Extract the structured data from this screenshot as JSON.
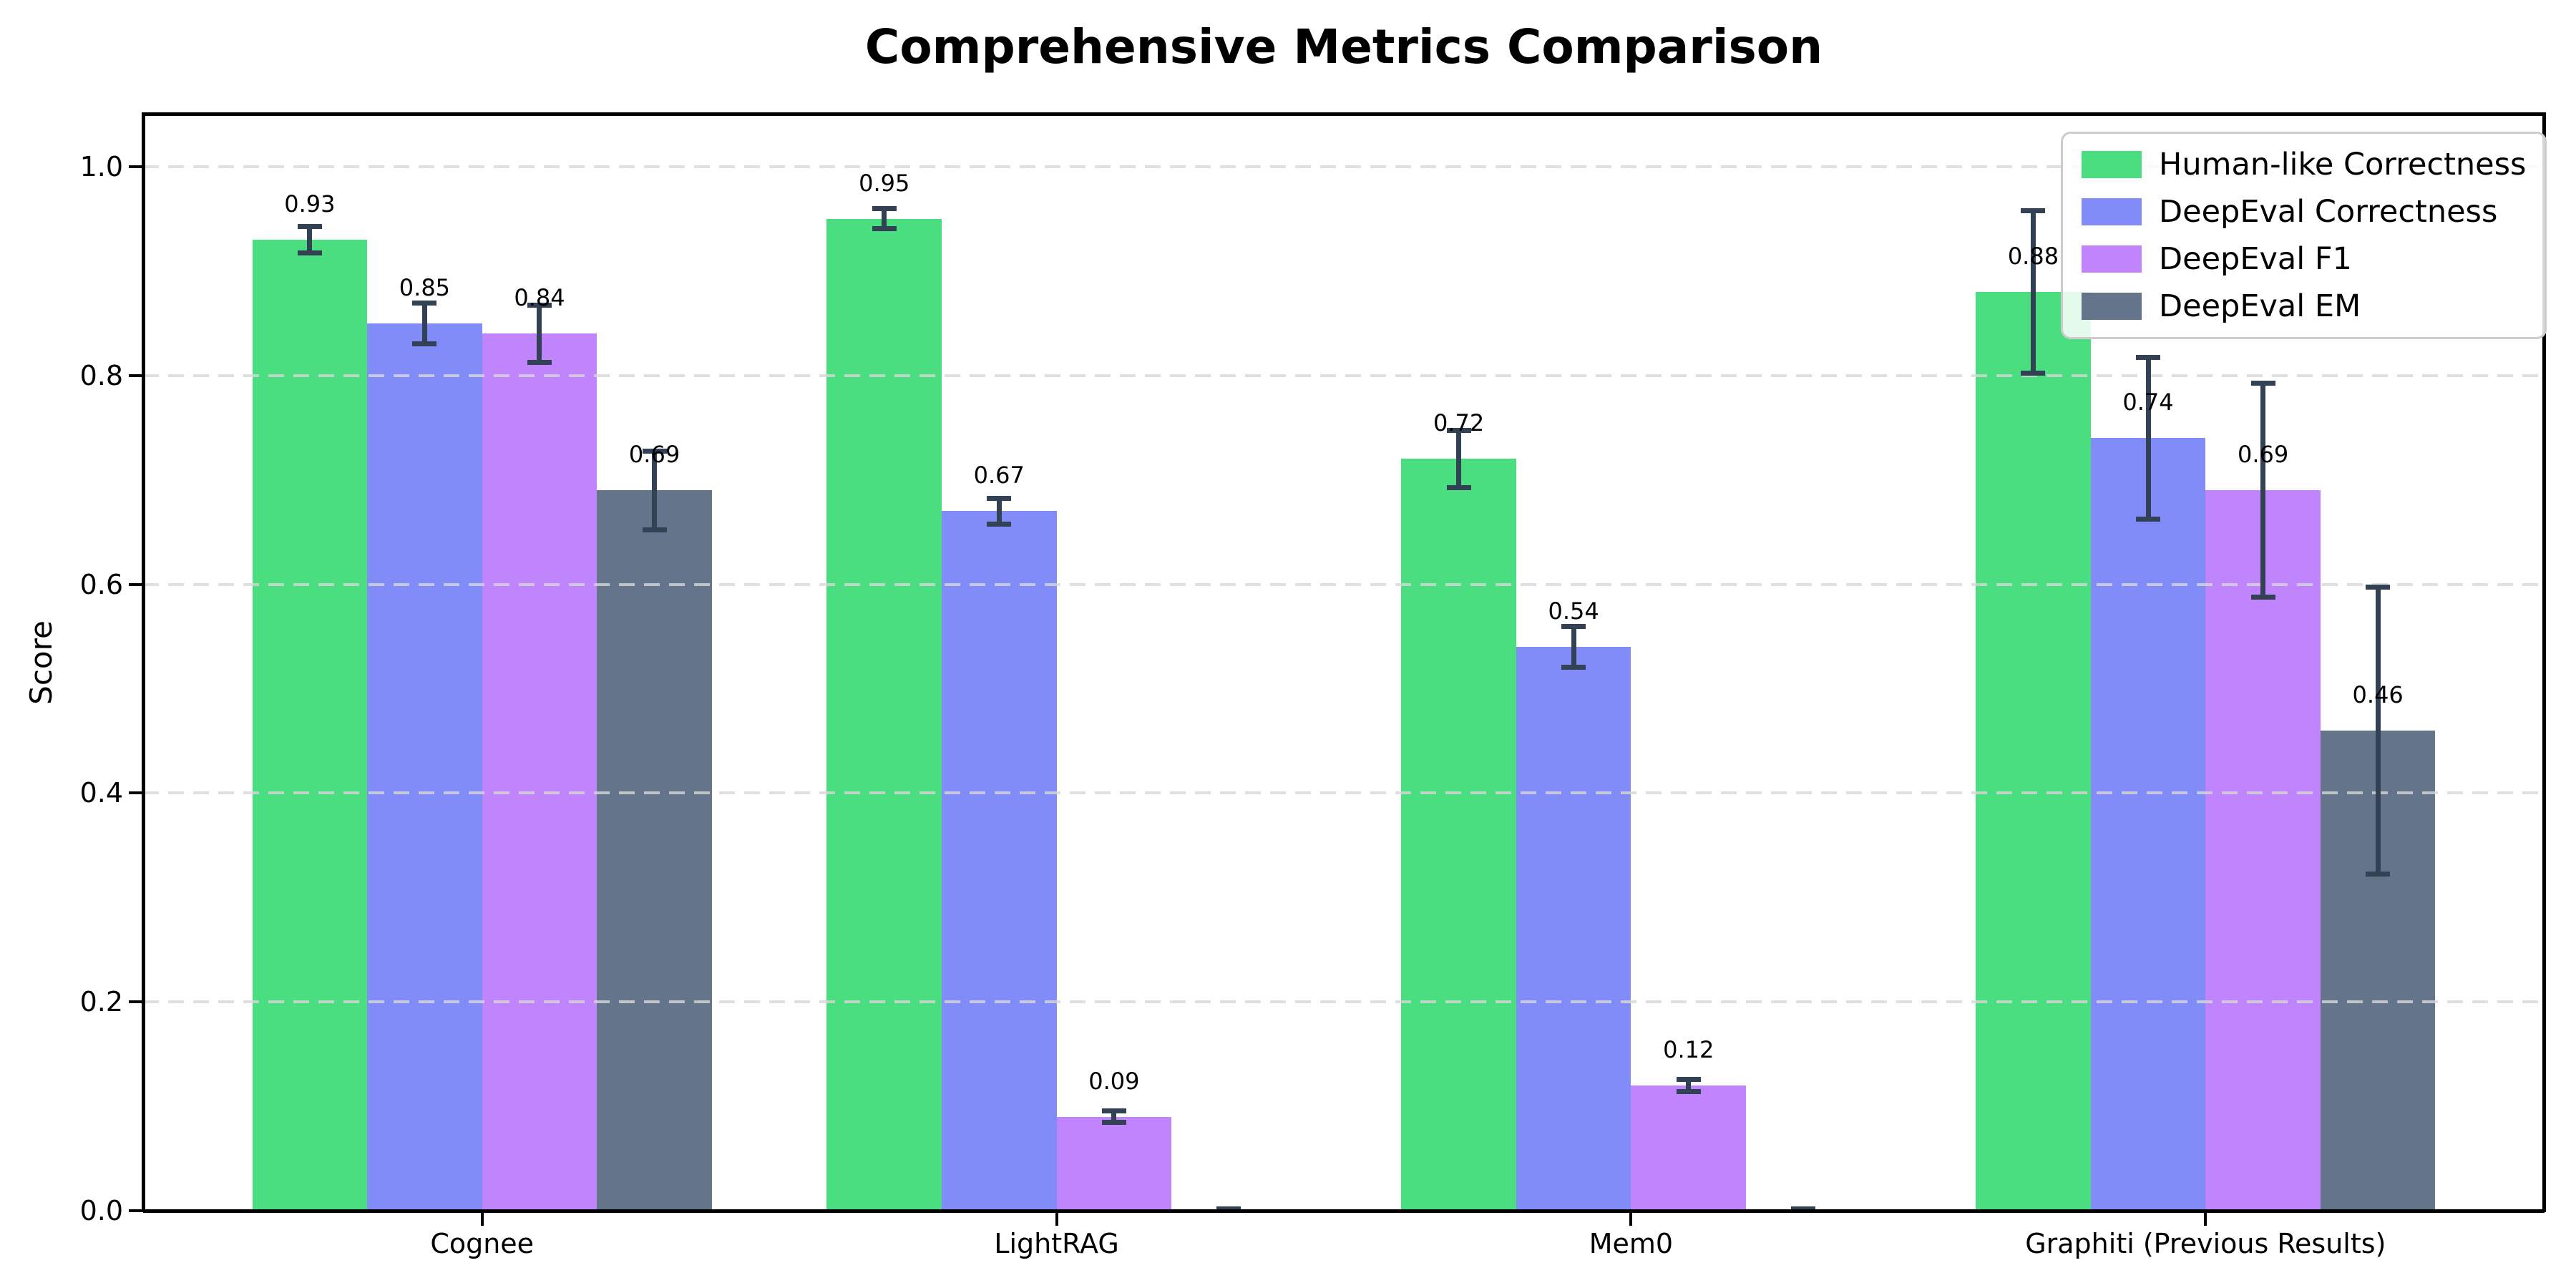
{
  "chart_data": {
    "type": "bar",
    "title": "Comprehensive Metrics Comparison",
    "ylabel": "Score",
    "xlabel": "",
    "categories": [
      "Cognee",
      "LightRAG",
      "Mem0",
      "Graphiti (Previous Results)"
    ],
    "series": [
      {
        "name": "Human-like Correctness",
        "color": "#4ade80",
        "values": [
          0.93,
          0.95,
          0.72,
          0.88
        ],
        "errors": [
          0.015,
          0.012,
          0.03,
          0.08
        ],
        "labels": [
          "0.93",
          "0.95",
          "0.72",
          "0.88"
        ]
      },
      {
        "name": "DeepEval Correctness",
        "color": "#818cf8",
        "values": [
          0.85,
          0.67,
          0.54,
          0.74
        ],
        "errors": [
          0.022,
          0.015,
          0.022,
          0.08
        ],
        "labels": [
          "0.85",
          "0.67",
          "0.54",
          "0.74"
        ]
      },
      {
        "name": "DeepEval F1",
        "color": "#c084fc",
        "values": [
          0.84,
          0.09,
          0.12,
          0.69
        ],
        "errors": [
          0.03,
          0.008,
          0.008,
          0.105
        ],
        "labels": [
          "0.84",
          "0.09",
          "0.12",
          "0.69"
        ]
      },
      {
        "name": "DeepEval EM",
        "color": "#64748b",
        "values": [
          0.69,
          0.0,
          0.0,
          0.46
        ],
        "errors": [
          0.04,
          0.004,
          0.004,
          0.14
        ],
        "labels": [
          "0.69",
          "",
          "",
          "0.46"
        ]
      }
    ],
    "yticks": [
      "0.0",
      "0.2",
      "0.4",
      "0.6",
      "0.8",
      "1.0"
    ],
    "ylim": [
      0,
      1.05
    ],
    "grid": {
      "axis": "y",
      "style": "dashed",
      "color": "#d7d7d7"
    },
    "legend": {
      "position": "upper right"
    },
    "error_bar_color": "#334155",
    "background": "#ffffff"
  }
}
